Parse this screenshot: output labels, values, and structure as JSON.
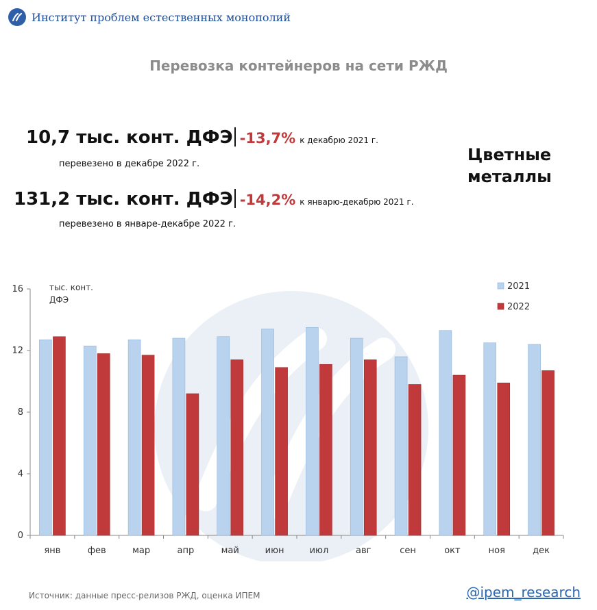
{
  "header": {
    "org_name": "Институт проблем естественных монополий"
  },
  "title": "Перевозка контейнеров на сети РЖД",
  "kpi1": {
    "value": "10,7 тыс. конт. ДФЭ",
    "change": "-13,7%",
    "comparison": "к декабрю 2021 г.",
    "caption": "перевезено в декабре 2022 г."
  },
  "kpi2": {
    "value": "131,2 тыс. конт. ДФЭ",
    "change": "-14,2%",
    "comparison": "к январю-декабрю 2021 г.",
    "caption": "перевезено в январе-декабре 2022 г."
  },
  "commodity": {
    "line1": "Цветные",
    "line2": "металлы"
  },
  "colors": {
    "series_2021": "#b9d3ee",
    "series_2022": "#c0393b",
    "accent": "#2e5fa8"
  },
  "chart_data": {
    "type": "bar",
    "ylabel_line1": "тыс. конт.",
    "ylabel_line2": "ДФЭ",
    "ylim": [
      0,
      16
    ],
    "yticks": [
      0,
      4,
      8,
      12,
      16
    ],
    "categories": [
      "янв",
      "фев",
      "мар",
      "апр",
      "май",
      "июн",
      "июл",
      "авг",
      "сен",
      "окт",
      "ноя",
      "дек"
    ],
    "series": [
      {
        "name": "2021",
        "values": [
          12.7,
          12.3,
          12.7,
          12.8,
          12.9,
          13.4,
          13.5,
          12.8,
          11.6,
          13.3,
          12.5,
          12.4
        ]
      },
      {
        "name": "2022",
        "values": [
          12.9,
          11.8,
          11.7,
          9.2,
          11.4,
          10.9,
          11.1,
          11.4,
          9.8,
          10.4,
          9.9,
          10.7
        ]
      }
    ],
    "legend": "top-right",
    "grid": false
  },
  "footer": {
    "source": "Источник: данные пресс-релизов РЖД, оценка ИПЕМ",
    "handle": "@ipem_research"
  }
}
